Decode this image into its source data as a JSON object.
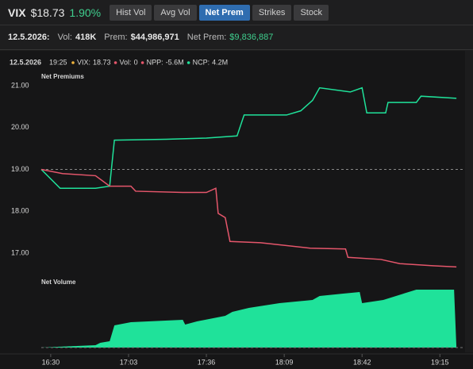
{
  "header": {
    "symbol": "VIX",
    "price": "$18.73",
    "change": "1.90%",
    "tabs": [
      "Hist Vol",
      "Avg Vol",
      "Net Prem",
      "Strikes",
      "Stock"
    ],
    "active_tab": 2
  },
  "summary": {
    "date": "12.5.2026:",
    "vol_label": "Vol:",
    "vol": "418K",
    "prem_label": "Prem:",
    "prem": "$44,986,971",
    "net_prem_label": "Net Prem:",
    "net_prem": "$9,836,887"
  },
  "chart_data": {
    "type": "line",
    "legend": {
      "date": "12.5.2026",
      "time": "19:25",
      "items": [
        {
          "label": "VIX:",
          "value": "18.73",
          "color": "#f0b43c"
        },
        {
          "label": "Vol:",
          "value": "0",
          "color": "#e5566b"
        },
        {
          "label": "NPP:",
          "value": "-5.6M",
          "color": "#e5566b"
        },
        {
          "label": "NCP:",
          "value": "4.2M",
          "color": "#1fe29a"
        }
      ]
    },
    "premiums_label": "Net Premiums",
    "volume_label": "Net Volume",
    "ylim": [
      16.5,
      21.2
    ],
    "yticks": [
      {
        "value": 21,
        "label": "21.00"
      },
      {
        "value": 20,
        "label": "20.00"
      },
      {
        "value": 19,
        "label": "19.00"
      },
      {
        "value": 18,
        "label": "18.00"
      },
      {
        "value": 17,
        "label": "17.00"
      }
    ],
    "baseline": 19,
    "xlim": [
      "16:26",
      "19:26"
    ],
    "xticks": [
      "16:30",
      "17:03",
      "17:36",
      "18:09",
      "18:42",
      "19:15"
    ],
    "series": [
      {
        "name": "NCP",
        "color": "#1fe29a",
        "x": [
          "16:26",
          "16:34",
          "16:49",
          "16:55",
          "16:57",
          "17:19",
          "17:36",
          "17:49",
          "17:52",
          "18:10",
          "18:16",
          "18:21",
          "18:24",
          "18:37",
          "18:42",
          "18:44",
          "18:52",
          "18:53",
          "19:05",
          "19:07",
          "19:22"
        ],
        "values": [
          19.0,
          18.55,
          18.55,
          18.6,
          19.7,
          19.72,
          19.75,
          19.8,
          20.3,
          20.3,
          20.4,
          20.65,
          20.95,
          20.85,
          20.95,
          20.35,
          20.35,
          20.6,
          20.6,
          20.75,
          20.7
        ]
      },
      {
        "name": "NPP",
        "color": "#e5566b",
        "x": [
          "16:26",
          "16:35",
          "16:49",
          "16:55",
          "17:04",
          "17:06",
          "17:26",
          "17:36",
          "17:40",
          "17:41",
          "17:44",
          "17:46",
          "17:59",
          "18:20",
          "18:35",
          "18:36",
          "18:50",
          "18:58",
          "19:12",
          "19:22"
        ],
        "values": [
          19.0,
          18.9,
          18.85,
          18.6,
          18.6,
          18.48,
          18.45,
          18.45,
          18.55,
          17.95,
          17.85,
          17.28,
          17.25,
          17.12,
          17.1,
          16.9,
          16.85,
          16.75,
          16.7,
          16.67
        ]
      }
    ],
    "volume": {
      "color": "#1fe29a",
      "ylim": [
        0,
        80
      ],
      "x": [
        "16:26",
        "16:33",
        "16:49",
        "16:51",
        "16:55",
        "16:57",
        "17:04",
        "17:26",
        "17:27",
        "17:32",
        "17:44",
        "17:47",
        "17:54",
        "18:07",
        "18:21",
        "18:24",
        "18:34",
        "18:41",
        "18:42",
        "18:51",
        "19:05",
        "19:21",
        "19:22"
      ],
      "values": [
        0,
        1,
        3,
        6,
        8,
        28,
        32,
        35,
        29,
        33,
        40,
        45,
        50,
        56,
        60,
        65,
        68,
        70,
        56,
        60,
        73,
        73,
        0
      ]
    }
  }
}
